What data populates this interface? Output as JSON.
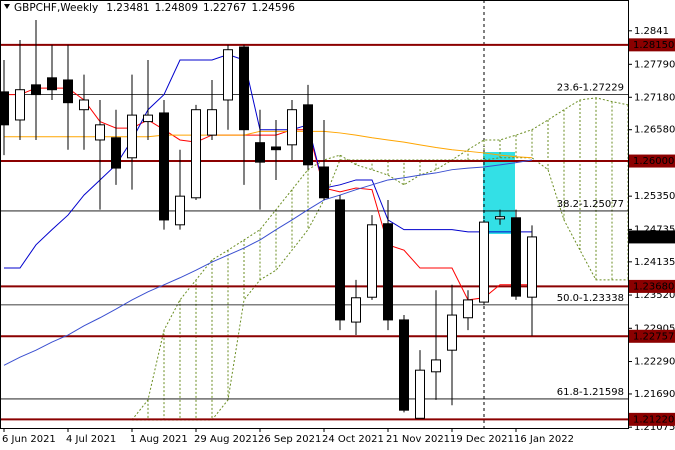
{
  "chart_data": {
    "type": "candlestick",
    "symbol": "GBPCHF,Weekly",
    "categories": [
      "6 Jun 2021",
      null,
      null,
      null,
      "4 Jul 2021",
      null,
      null,
      null,
      "1 Aug 2021",
      null,
      null,
      null,
      "29 Aug 2021",
      null,
      null,
      null,
      "26 Sep 2021",
      null,
      null,
      null,
      "24 Oct 2021",
      null,
      null,
      null,
      "21 Nov 2021",
      null,
      null,
      null,
      "19 Dec 2021",
      null,
      null,
      null,
      "16 Jan 2022",
      null,
      null,
      null,
      null,
      null,
      null,
      null
    ],
    "open": [
      1.2728,
      1.2676,
      1.2741,
      1.2754,
      1.275,
      1.2695,
      1.2639,
      1.2643,
      1.2606,
      1.2673,
      1.2689,
      1.2482,
      1.2532,
      1.2648,
      1.2713,
      1.2811,
      1.2634,
      1.2626,
      1.263,
      1.2704,
      1.2589,
      1.2528,
      1.2302,
      1.2348,
      1.2484,
      1.2306,
      1.2124,
      1.221,
      1.225,
      1.231,
      1.2339,
      1.2493,
      1.2495,
      1.23481,
      null,
      null,
      null,
      null,
      null,
      null
    ],
    "high": [
      1.2787,
      1.2824,
      1.2861,
      1.2815,
      1.2815,
      1.276,
      1.2713,
      1.2695,
      1.276,
      1.2787,
      1.2713,
      1.2621,
      1.2704,
      1.275,
      1.2815,
      1.2815,
      1.2695,
      1.2676,
      1.2713,
      1.2741,
      1.2676,
      1.2537,
      1.238,
      1.25,
      1.2528,
      1.2315,
      1.225,
      1.2361,
      1.2371,
      1.2361,
      1.2491,
      1.251,
      1.251,
      1.24809,
      null,
      null,
      null,
      null,
      null,
      null
    ],
    "low": [
      1.2611,
      1.2639,
      1.2639,
      1.2713,
      1.2621,
      1.2621,
      1.251,
      1.2556,
      1.2547,
      1.2639,
      1.2473,
      1.2473,
      1.2528,
      1.2639,
      1.2658,
      1.2556,
      1.251,
      1.2565,
      1.2602,
      1.2584,
      1.2528,
      1.2287,
      1.2278,
      1.2343,
      1.2287,
      1.2135,
      1.2124,
      1.2158,
      1.2148,
      1.2287,
      1.2334,
      1.2482,
      1.2343,
      1.22767,
      null,
      null,
      null,
      null,
      null,
      null
    ],
    "close": [
      1.2667,
      1.2732,
      1.2723,
      1.2732,
      1.2708,
      1.2713,
      1.2667,
      1.2587,
      1.2685,
      1.2685,
      1.2491,
      1.2535,
      1.2695,
      1.2695,
      1.2806,
      1.2658,
      1.2598,
      1.2621,
      1.2695,
      1.2593,
      1.2532,
      1.2306,
      1.2347,
      1.2482,
      1.2306,
      1.2139,
      1.2213,
      1.2232,
      1.2315,
      1.2343,
      1.2487,
      1.2497,
      1.235,
      1.24596,
      null,
      null,
      null,
      null,
      null,
      null
    ],
    "lines": [
      {
        "color": "#ff0000",
        "values": [
          1.2723,
          1.2723,
          1.2735,
          1.2735,
          1.2735,
          1.2713,
          1.2673,
          1.2661,
          1.2661,
          1.2676,
          1.2658,
          1.2639,
          1.2635,
          1.2648,
          1.2648,
          1.2648,
          1.2648,
          1.2648,
          1.2658,
          1.2658,
          1.255,
          1.2543,
          1.255,
          1.2547,
          1.2445,
          1.2435,
          1.2402,
          1.2402,
          1.2402,
          1.2343,
          1.2347,
          1.2371,
          1.2371,
          1.2371,
          null,
          null,
          null,
          null,
          null,
          null
        ]
      },
      {
        "color": "#0000cd",
        "values": [
          1.2402,
          1.2402,
          1.2445,
          1.2473,
          1.25,
          1.2537,
          1.2565,
          1.2593,
          1.2639,
          1.2695,
          1.2723,
          1.2787,
          1.2787,
          1.2787,
          1.2797,
          1.2787,
          1.2658,
          1.2658,
          1.2658,
          1.2667,
          1.255,
          1.2556,
          1.2565,
          1.2565,
          1.2491,
          1.2473,
          1.2473,
          1.2473,
          1.2473,
          1.2469,
          1.2469,
          1.2469,
          1.2469,
          1.2469,
          null,
          null,
          null,
          null,
          null,
          null
        ]
      },
      {
        "color": "#ffa500",
        "values": [
          1.2645,
          1.2645,
          1.2645,
          1.2645,
          1.2645,
          1.2645,
          1.2645,
          1.2645,
          1.2645,
          1.2645,
          1.2648,
          1.2648,
          1.2648,
          1.2648,
          1.2648,
          1.2648,
          1.2655,
          1.2655,
          1.2655,
          1.2655,
          1.2655,
          1.2652,
          1.2648,
          1.2643,
          1.2639,
          1.2635,
          1.263,
          1.2625,
          1.2621,
          1.2618,
          1.2615,
          1.2611,
          1.2608,
          1.2606,
          null,
          null,
          null,
          null,
          null,
          null
        ]
      },
      {
        "color": "#3a4fd0",
        "values": [
          1.2222,
          1.2237,
          1.225,
          1.2265,
          1.2278,
          1.2295,
          1.231,
          1.2326,
          1.2343,
          1.2358,
          1.2371,
          1.2384,
          1.2398,
          1.2413,
          1.2426,
          1.2439,
          1.2454,
          1.2473,
          1.2491,
          1.251,
          1.2528,
          1.2537,
          1.2547,
          1.2556,
          1.2565,
          1.2569,
          1.2574,
          1.2578,
          1.2584,
          1.2587,
          1.2589,
          1.2593,
          1.2597,
          1.2602,
          null,
          null,
          null,
          null,
          null,
          null
        ]
      }
    ],
    "cloud": {
      "color": "#6b8e23",
      "span_a": [
        null,
        null,
        null,
        null,
        null,
        null,
        null,
        null,
        1.2121,
        1.2158,
        1.2287,
        1.2343,
        1.238,
        1.2417,
        1.2435,
        1.2454,
        1.2473,
        1.251,
        1.2547,
        1.2584,
        1.2602,
        1.2611,
        1.2593,
        1.2584,
        1.2574,
        1.2556,
        1.2574,
        1.2584,
        1.2602,
        1.2621,
        1.2639,
        1.2639,
        1.2648,
        1.2658,
        1.2676,
        1.2695,
        1.2713,
        1.2717,
        1.271,
        1.2704
      ],
      "span_b": [
        null,
        null,
        null,
        null,
        null,
        null,
        null,
        null,
        1.2121,
        1.2121,
        1.2121,
        1.2121,
        1.2121,
        1.2121,
        1.2158,
        1.2343,
        1.238,
        1.2398,
        1.2435,
        1.2473,
        1.2528,
        1.2602,
        1.2602,
        1.2602,
        1.2602,
        1.2602,
        1.2602,
        1.2602,
        1.2602,
        1.2602,
        1.2602,
        1.2606,
        1.2606,
        1.2606,
        1.2584,
        1.2491,
        1.2435,
        1.238,
        1.238,
        1.238
      ]
    },
    "levels": [
      {
        "value": 1.2815,
        "label": "1.28150"
      },
      {
        "value": 1.26,
        "label": "1.26000"
      },
      {
        "value": 1.2368,
        "label": "1.23680"
      },
      {
        "value": 1.22757,
        "label": "1.22757"
      },
      {
        "value": 1.2122,
        "label": "1.21220"
      }
    ],
    "level_color": "#8b0000",
    "fib_levels": [
      {
        "value": 1.27229,
        "label": "23.6-1.27229"
      },
      {
        "value": 1.25077,
        "label": "38.2-1.25077"
      },
      {
        "value": 1.23338,
        "label": "50.0-1.23338"
      },
      {
        "value": 1.21598,
        "label": "61.8-1.21598"
      }
    ],
    "ylim": [
      1.2106,
      1.2898
    ],
    "yticks": [
      1.2841,
      {
        "value": 1.2779,
        "label": "1.27790"
      },
      {
        "value": 1.2718,
        "label": "1.27180"
      },
      {
        "value": 1.2658,
        "label": "1.26580"
      },
      {
        "value": 1.2535,
        "label": "1.25350"
      },
      1.24735,
      1.24135,
      {
        "value": 1.2352,
        "label": "1.23520"
      },
      1.22905,
      {
        "value": 1.2229,
        "label": "1.22290"
      },
      {
        "value": 1.2169,
        "label": "1.21690"
      },
      1.21075
    ]
  }
}
